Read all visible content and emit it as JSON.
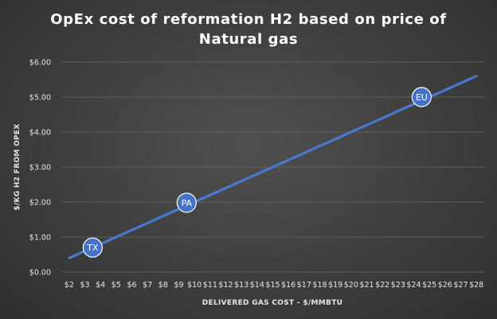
{
  "chart_data": {
    "type": "line",
    "title_lines": [
      "OpEx cost of reformation H2 based on price of",
      "Natural gas"
    ],
    "xlabel": "DELIVERED GAS COST - $/MMBTU",
    "ylabel": "$/KG H2 FROM OPEX",
    "categories": [
      "$2",
      "$3",
      "$4",
      "$5",
      "$6",
      "$7",
      "$8",
      "$9",
      "$10",
      "$11",
      "$12",
      "$13",
      "$14",
      "$15",
      "$16",
      "$17",
      "$18",
      "$19",
      "$20",
      "$21",
      "$22",
      "$23",
      "$24",
      "$25",
      "$26",
      "$27",
      "$28"
    ],
    "x": [
      2,
      3,
      4,
      5,
      6,
      7,
      8,
      9,
      10,
      11,
      12,
      13,
      14,
      15,
      16,
      17,
      18,
      19,
      20,
      21,
      22,
      23,
      24,
      25,
      26,
      27,
      28
    ],
    "y": [
      0.4,
      0.6,
      0.8,
      1.0,
      1.2,
      1.4,
      1.6,
      1.8,
      2.0,
      2.2,
      2.4,
      2.6,
      2.8,
      3.0,
      3.2,
      3.4,
      3.6,
      3.8,
      4.0,
      4.2,
      4.4,
      4.6,
      4.8,
      5.0,
      5.2,
      5.4,
      5.6
    ],
    "ylim": [
      0,
      6
    ],
    "yticks": [
      "$0.00",
      "$1.00",
      "$2.00",
      "$3.00",
      "$4.00",
      "$5.00",
      "$6.00"
    ],
    "grid": true,
    "line_color": "#4a78cf",
    "annotations": [
      {
        "label": "TX",
        "x": 3.5,
        "y": 0.7
      },
      {
        "label": "PA",
        "x": 9.5,
        "y": 1.98
      },
      {
        "label": "EU",
        "x": 24.5,
        "y": 5.0
      }
    ]
  }
}
